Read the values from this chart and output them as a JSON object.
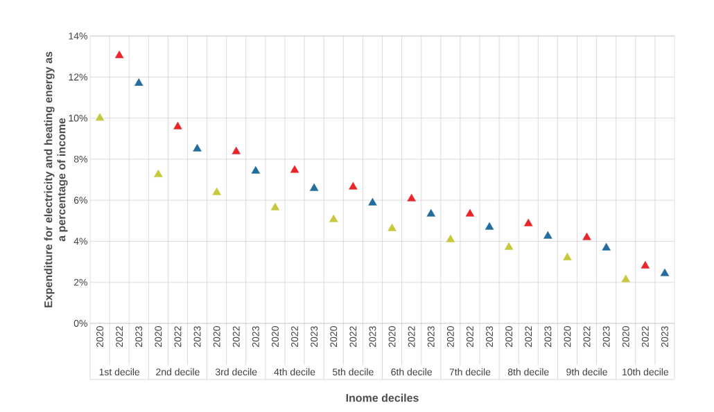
{
  "chart_data": {
    "type": "scatter",
    "categories": [
      "2020",
      "2022",
      "2023",
      "2020",
      "2022",
      "2023",
      "2020",
      "2022",
      "2023",
      "2020",
      "2022",
      "2023",
      "2020",
      "2022",
      "2023",
      "2020",
      "2022",
      "2023",
      "2020",
      "2022",
      "2023",
      "2020",
      "2022",
      "2023",
      "2020",
      "2022",
      "2023",
      "2020",
      "2022",
      "2023"
    ],
    "values": [
      10.0,
      13.05,
      11.7,
      7.25,
      9.58,
      8.5,
      6.38,
      8.37,
      7.42,
      5.63,
      7.46,
      6.58,
      5.06,
      6.65,
      5.87,
      4.62,
      6.07,
      5.33,
      4.08,
      5.33,
      4.69,
      3.71,
      4.86,
      4.25,
      3.2,
      4.18,
      3.68,
      2.13,
      2.8,
      2.43
    ],
    "colors": [
      "#c8c83c",
      "#e8262a",
      "#236c9c",
      "#c8c83c",
      "#e8262a",
      "#236c9c",
      "#c8c83c",
      "#e8262a",
      "#236c9c",
      "#c8c83c",
      "#e8262a",
      "#236c9c",
      "#c8c83c",
      "#e8262a",
      "#236c9c",
      "#c8c83c",
      "#e8262a",
      "#236c9c",
      "#c8c83c",
      "#e8262a",
      "#236c9c",
      "#c8c83c",
      "#e8262a",
      "#236c9c",
      "#c8c83c",
      "#e8262a",
      "#236c9c",
      "#c8c83c",
      "#e8262a",
      "#236c9c"
    ],
    "annotations": [
      "1st decile",
      "2nd decile",
      "3rd decile",
      "4th decile",
      "5th decile",
      "6th decile",
      "7th decile",
      "8th decile",
      "9th decile",
      "10th decile"
    ],
    "xlabel": "Inome deciles",
    "ylabel": "Expenditure for electricity and heating energy as a percentage of income",
    "ylim": [
      0,
      14
    ],
    "yticks": [
      {
        "value": 0,
        "label": "0%"
      },
      {
        "value": 2,
        "label": "2%"
      },
      {
        "value": 4,
        "label": "4%"
      },
      {
        "value": 6,
        "label": "6%"
      },
      {
        "value": 8,
        "label": "8%"
      },
      {
        "value": 10,
        "label": "10%"
      },
      {
        "value": 12,
        "label": "12%"
      },
      {
        "value": 14,
        "label": "14%"
      }
    ],
    "grid": true,
    "marker": "triangle"
  }
}
